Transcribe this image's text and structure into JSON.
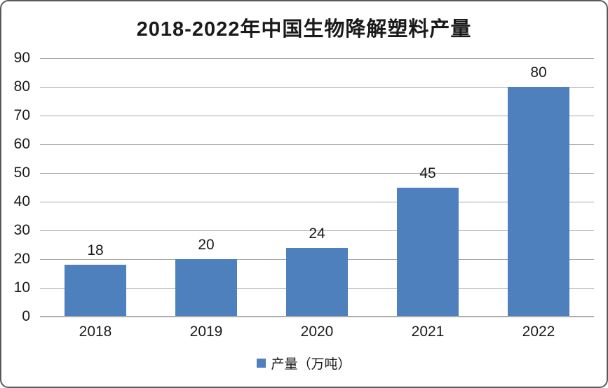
{
  "chart_data": {
    "type": "bar",
    "title": "2018-2022年中国生物降解塑料产量",
    "categories": [
      "2018",
      "2019",
      "2020",
      "2021",
      "2022"
    ],
    "series": [
      {
        "name": "产量（万吨）",
        "values": [
          18,
          20,
          24,
          45,
          80
        ]
      }
    ],
    "data_labels": [
      18,
      20,
      24,
      45,
      80
    ],
    "xlabel": "",
    "ylabel": "",
    "ylim": [
      0,
      90
    ],
    "yticks": [
      0,
      10,
      20,
      30,
      40,
      50,
      60,
      70,
      80,
      90
    ],
    "grid": "horizontal",
    "legend_position": "bottom",
    "legend_entries": [
      "产量（万吨）"
    ]
  },
  "colors": {
    "bar": "#4e80bd",
    "gridline": "#a6a6a6",
    "axis_line": "#ababab",
    "text": "#1a1a1a",
    "frame_border": "#5a5a5a",
    "background": "#ffffff"
  }
}
